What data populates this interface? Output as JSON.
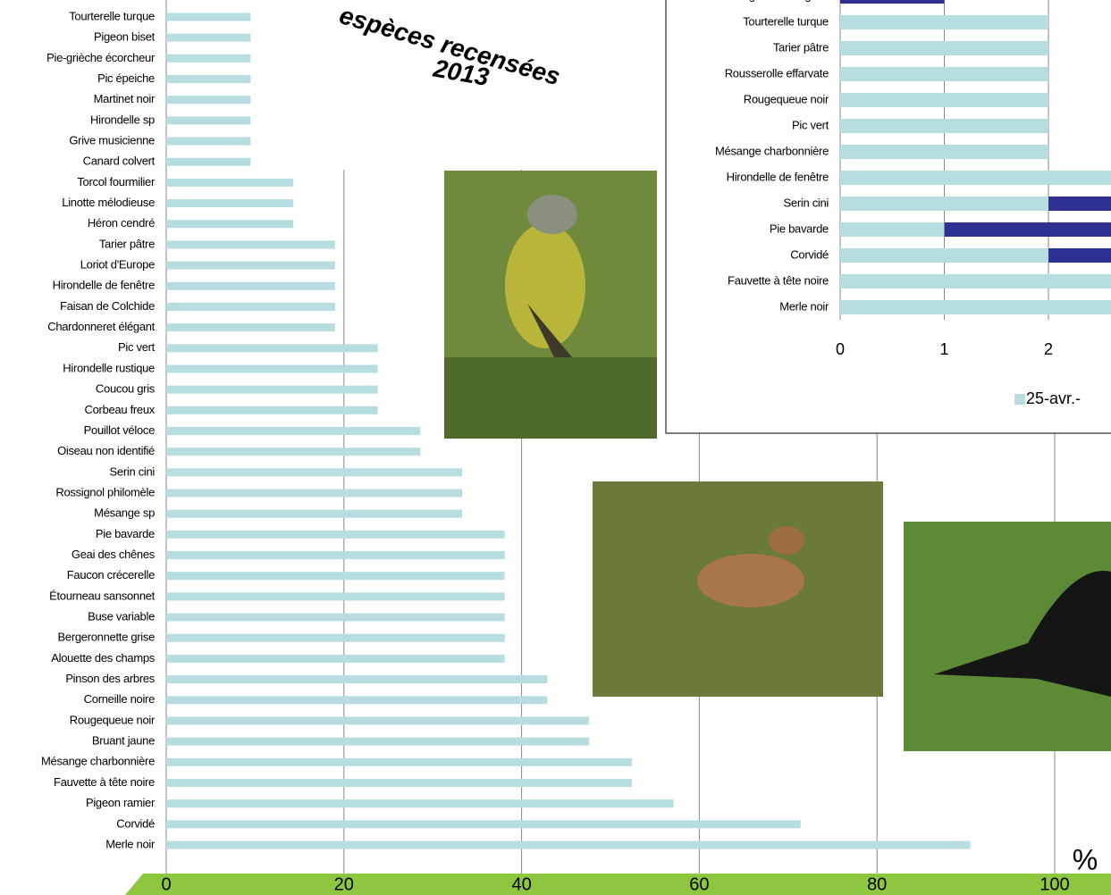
{
  "chart_data": [
    {
      "type": "bar",
      "orientation": "horizontal",
      "title": "espèces recensées",
      "subtitle": "2013",
      "xlabel": "%",
      "categories": [
        "Tourterelle turque",
        "Pigeon biset",
        "Pie-grièche écorcheur",
        "Pic épeiche",
        "Martinet noir",
        "Hirondelle sp",
        "Grive musicienne",
        "Canard colvert",
        "Torcol fourmilier",
        "Linotte mélodieuse",
        "Héron cendré",
        "Tarier pâtre",
        "Loriot d'Europe",
        "Hirondelle de fenêtre",
        "Faisan de Colchide",
        "Chardonneret élégant",
        "Pic vert",
        "Hirondelle rustique",
        "Coucou gris",
        "Corbeau freux",
        "Pouillot véloce",
        "Oiseau non identifié",
        "Serin cini",
        "Rossignol philomèle",
        "Mésange sp",
        "Pie bavarde",
        "Geai des chênes",
        "Faucon crécerelle",
        "Étourneau sansonnet",
        "Buse variable",
        "Bergeronnette grise",
        "Alouette des champs",
        "Pinson des arbres",
        "Corneille noire",
        "Rougequeue noir",
        "Bruant jaune",
        "Mésange charbonnière",
        "Fauvette à tête noire",
        "Pigeon ramier",
        "Corvidé",
        "Merle noir"
      ],
      "values": [
        9.5,
        9.5,
        9.5,
        9.5,
        9.5,
        9.5,
        9.5,
        9.5,
        14.3,
        14.3,
        14.3,
        19,
        19,
        19,
        19,
        19,
        23.8,
        23.8,
        23.8,
        23.8,
        28.6,
        28.6,
        33.3,
        33.3,
        33.3,
        38.1,
        38.1,
        38.1,
        38.1,
        38.1,
        38.1,
        38.1,
        42.9,
        42.9,
        47.6,
        47.6,
        52.4,
        52.4,
        57.1,
        71.4,
        90.5
      ],
      "color": "#b7dde0",
      "xlim": [
        0,
        100
      ],
      "xticks": [
        0,
        20,
        40,
        60,
        80,
        100
      ],
      "grid": true
    },
    {
      "type": "bar",
      "orientation": "horizontal",
      "stacked": true,
      "categories": [
        "Bergeronnette grise",
        "Tourterelle turque",
        "Tarier pâtre",
        "Rousserolle effarvate",
        "Rougequeue noir",
        "Pic vert",
        "Mésange charbonnière",
        "Hirondelle de fenêtre",
        "Serin cini",
        "Pie bavarde",
        "Corvidé",
        "Fauvette à tête noire",
        "Merle noir"
      ],
      "series": [
        {
          "name": "25-avr.-",
          "color": "#b7dde0",
          "values": [
            0,
            2,
            2,
            2,
            2,
            2,
            2,
            3,
            2,
            1,
            2,
            3,
            3
          ]
        },
        {
          "color": "#2e3192",
          "values": [
            1,
            0,
            0,
            0,
            0,
            0,
            0,
            0,
            1,
            2,
            1,
            0,
            0
          ]
        }
      ],
      "xlim": [
        0,
        3
      ],
      "xticks": [
        0,
        1,
        2
      ],
      "grid": true
    }
  ]
}
